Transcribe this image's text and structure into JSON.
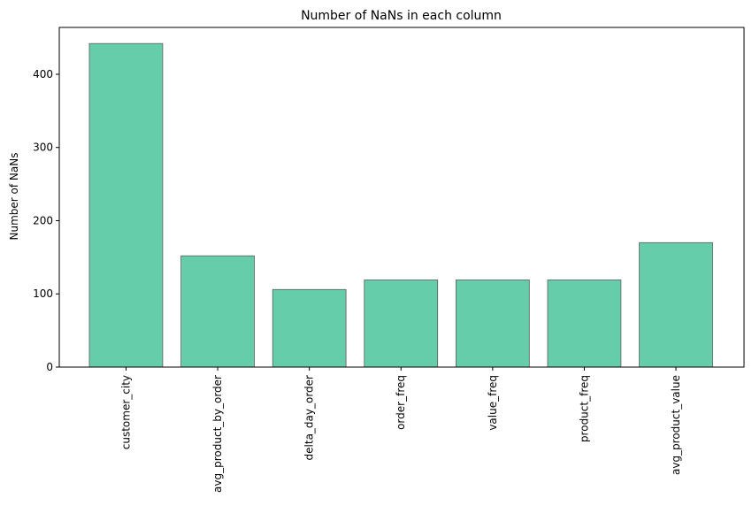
{
  "chart_data": {
    "type": "bar",
    "title": "Number of NaNs in each column",
    "xlabel": "",
    "ylabel": "Number of NaNs",
    "categories": [
      "customer_city",
      "avg_product_by_order",
      "delta_day_order",
      "order_freq",
      "value_freq",
      "product_freq",
      "avg_product_value"
    ],
    "values": [
      442,
      152,
      106,
      119,
      119,
      119,
      170
    ],
    "ylim": [
      0,
      464
    ],
    "yticks": [
      "0",
      "100",
      "200",
      "300",
      "400"
    ],
    "grid": false,
    "legend": "none",
    "bar_color": "#66cdaa",
    "bar_edge_color": "#5a5a5a"
  }
}
